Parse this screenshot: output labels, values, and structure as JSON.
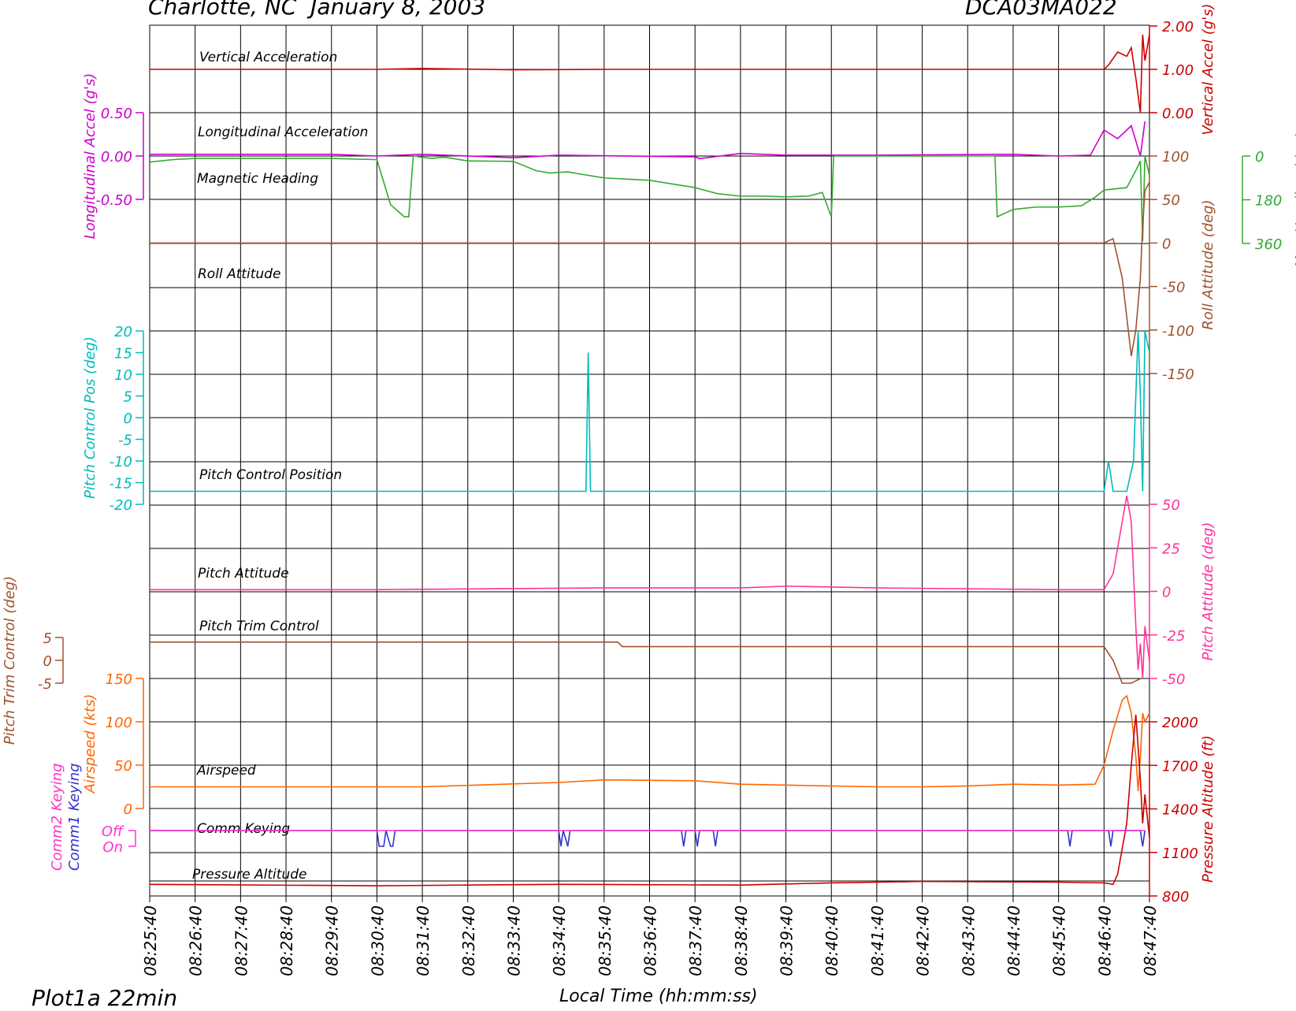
{
  "header": {
    "title": "Charlotte, NC  January 8, 2003",
    "case_id": "DCA03MA022",
    "plot_label": "Plot1a 22min"
  },
  "chart_data": {
    "type": "line",
    "x_axis": {
      "label": "Local Time (hh:mm:ss)",
      "ticks": [
        "08:25:40",
        "08:26:40",
        "08:27:40",
        "08:28:40",
        "08:29:40",
        "08:30:40",
        "08:31:40",
        "08:32:40",
        "08:33:40",
        "08:34:40",
        "08:35:40",
        "08:36:40",
        "08:37:40",
        "08:38:40",
        "08:39:40",
        "08:40:40",
        "08:41:40",
        "08:42:40",
        "08:43:40",
        "08:44:40",
        "08:45:40",
        "08:46:40",
        "08:47:40"
      ],
      "range": [
        "08:25:40",
        "08:47:40"
      ]
    },
    "grid": true,
    "axes": [
      {
        "id": "vert_accel",
        "side": "right",
        "label": "Vertical Accel (g's)",
        "color": "#cc0000",
        "ticks": [
          "2.00",
          "1.00",
          "0.00"
        ],
        "range": [
          0,
          2
        ]
      },
      {
        "id": "long_accel",
        "side": "left",
        "label": "Longitudinal Accel (g's)",
        "color": "#cc00cc",
        "ticks": [
          "0.50",
          "0.00",
          "-0.50"
        ],
        "range": [
          -0.5,
          0.5
        ]
      },
      {
        "id": "roll",
        "side": "right",
        "label": "Roll Attitude (deg)",
        "color": "#a0522d",
        "ticks": [
          "-150",
          "-100",
          "-50",
          "0",
          "50",
          "100"
        ],
        "range": [
          -150,
          100
        ]
      },
      {
        "id": "mag_heading",
        "side": "right",
        "label": "Mag Heading (deg)",
        "color": "#33aa33",
        "ticks": [
          "0",
          "180",
          "360"
        ],
        "range": [
          0,
          360
        ]
      },
      {
        "id": "pitch_ctrl",
        "side": "left",
        "label": "Pitch Control Pos (deg)",
        "color": "#00bbbb",
        "ticks": [
          "20",
          "15",
          "10",
          "5",
          "0",
          "-5",
          "-10",
          "-15",
          "-20"
        ],
        "range": [
          -20,
          20
        ]
      },
      {
        "id": "pitch_att",
        "side": "right",
        "label": "Pitch Attitude (deg)",
        "color": "#ff3399",
        "ticks": [
          "50",
          "25",
          "0",
          "-25",
          "-50"
        ],
        "range": [
          -50,
          50
        ]
      },
      {
        "id": "pitch_trim",
        "side": "left",
        "label": "Pitch Trim Control (deg)",
        "color": "#a0522d",
        "ticks": [
          "5",
          "0",
          "-5"
        ],
        "range": [
          -5,
          5
        ]
      },
      {
        "id": "airspeed",
        "side": "left",
        "label": "Airspeed (kts)",
        "color": "#ff6600",
        "ticks": [
          "150",
          "100",
          "50",
          "0"
        ],
        "range": [
          0,
          150
        ]
      },
      {
        "id": "press_alt",
        "side": "right",
        "label": "Pressure Altitude (ft)",
        "color": "#cc0000",
        "ticks": [
          "2000",
          "1700",
          "1400",
          "1100",
          "800"
        ],
        "range": [
          800,
          2000
        ]
      },
      {
        "id": "comm1",
        "side": "left",
        "label": "Comm1 Keying",
        "color": "#3333cc",
        "ticks": [
          "Off",
          "On"
        ]
      },
      {
        "id": "comm2",
        "side": "left",
        "label": "Comm2 Keying",
        "color": "#ff33cc",
        "ticks": [
          "Off",
          "On"
        ]
      }
    ],
    "series": [
      {
        "name": "Vertical Acceleration",
        "axis": "vert_accel",
        "color": "#cc0000",
        "points": [
          [
            0,
            1.0
          ],
          [
            5,
            1.0
          ],
          [
            6,
            1.02
          ],
          [
            8,
            0.99
          ],
          [
            10,
            1.0
          ],
          [
            14,
            1.0
          ],
          [
            18,
            1.0
          ],
          [
            21,
            1.0
          ],
          [
            21.1,
            1.1
          ],
          [
            21.3,
            1.4
          ],
          [
            21.5,
            1.3
          ],
          [
            21.6,
            1.5
          ],
          [
            21.7,
            0.8
          ],
          [
            21.8,
            0.0
          ],
          [
            21.85,
            1.8
          ],
          [
            21.9,
            1.2
          ],
          [
            22.0,
            1.8
          ]
        ]
      },
      {
        "name": "Longitudinal Acceleration",
        "axis": "long_accel",
        "color": "#cc00cc",
        "points": [
          [
            0,
            0.02
          ],
          [
            4,
            0.02
          ],
          [
            5,
            0.0
          ],
          [
            6,
            0.02
          ],
          [
            8,
            -0.02
          ],
          [
            9,
            0.01
          ],
          [
            12,
            -0.01
          ],
          [
            12.1,
            -0.03
          ],
          [
            13,
            0.03
          ],
          [
            14,
            0.01
          ],
          [
            16,
            0.01
          ],
          [
            19,
            0.02
          ],
          [
            20,
            0.0
          ],
          [
            20.7,
            0.01
          ],
          [
            21.0,
            0.3
          ],
          [
            21.3,
            0.2
          ],
          [
            21.6,
            0.35
          ],
          [
            21.8,
            0.0
          ],
          [
            21.9,
            0.4
          ]
        ]
      },
      {
        "name": "Magnetic Heading",
        "axis": "mag_heading",
        "color": "#33aa33",
        "points": [
          [
            0,
            25
          ],
          [
            0.5,
            15
          ],
          [
            1,
            10
          ],
          [
            2,
            10
          ],
          [
            4,
            10
          ],
          [
            5,
            15
          ],
          [
            5.3,
            200
          ],
          [
            5.6,
            250
          ],
          [
            5.7,
            250
          ],
          [
            5.8,
            0
          ],
          [
            6.2,
            10
          ],
          [
            6.5,
            5
          ],
          [
            7,
            20
          ],
          [
            8,
            22
          ],
          [
            8.5,
            60
          ],
          [
            8.8,
            70
          ],
          [
            9.2,
            65
          ],
          [
            9.5,
            75
          ],
          [
            10,
            90
          ],
          [
            10.5,
            95
          ],
          [
            11,
            100
          ],
          [
            11.5,
            115
          ],
          [
            12,
            130
          ],
          [
            12.5,
            155
          ],
          [
            13,
            165
          ],
          [
            13.5,
            165
          ],
          [
            14,
            168
          ],
          [
            14.5,
            165
          ],
          [
            14.8,
            150
          ],
          [
            15,
            250
          ],
          [
            15.05,
            0
          ],
          [
            17,
            0
          ],
          [
            18,
            0
          ],
          [
            18.6,
            0
          ],
          [
            18.65,
            250
          ],
          [
            19,
            220
          ],
          [
            19.5,
            210
          ],
          [
            20,
            210
          ],
          [
            20.5,
            205
          ],
          [
            20.8,
            170
          ],
          [
            21,
            140
          ],
          [
            21.5,
            130
          ],
          [
            21.7,
            60
          ],
          [
            21.8,
            20
          ],
          [
            21.85,
            350
          ],
          [
            21.9,
            0
          ],
          [
            22.0,
            80
          ]
        ]
      },
      {
        "name": "Roll Attitude",
        "axis": "roll",
        "color": "#a0522d",
        "points": [
          [
            0,
            0
          ],
          [
            10,
            0
          ],
          [
            20,
            0
          ],
          [
            21.0,
            0
          ],
          [
            21.2,
            5
          ],
          [
            21.4,
            -40
          ],
          [
            21.6,
            -130
          ],
          [
            21.7,
            -100
          ],
          [
            21.8,
            -40
          ],
          [
            21.85,
            20
          ],
          [
            21.9,
            60
          ],
          [
            22.0,
            70
          ]
        ]
      },
      {
        "name": "Pitch Control Position",
        "axis": "pitch_ctrl",
        "color": "#00bbbb",
        "points": [
          [
            0,
            -17
          ],
          [
            5,
            -17
          ],
          [
            9.6,
            -17
          ],
          [
            9.65,
            15
          ],
          [
            9.7,
            -17
          ],
          [
            10,
            -17
          ],
          [
            15,
            -17
          ],
          [
            20,
            -17
          ],
          [
            21.0,
            -17
          ],
          [
            21.1,
            -10
          ],
          [
            21.2,
            -17
          ],
          [
            21.5,
            -17
          ],
          [
            21.65,
            -10
          ],
          [
            21.75,
            20
          ],
          [
            21.8,
            5
          ],
          [
            21.85,
            -17
          ],
          [
            21.9,
            20
          ],
          [
            22.0,
            15
          ]
        ]
      },
      {
        "name": "Pitch Attitude",
        "axis": "pitch_att",
        "color": "#ff3399",
        "points": [
          [
            0,
            1
          ],
          [
            5,
            1
          ],
          [
            10,
            2
          ],
          [
            13,
            2
          ],
          [
            14,
            3
          ],
          [
            16,
            2
          ],
          [
            20,
            1
          ],
          [
            21.0,
            1
          ],
          [
            21.2,
            10
          ],
          [
            21.4,
            40
          ],
          [
            21.5,
            55
          ],
          [
            21.6,
            40
          ],
          [
            21.7,
            -20
          ],
          [
            21.75,
            -45
          ],
          [
            21.8,
            -30
          ],
          [
            21.85,
            -50
          ],
          [
            21.9,
            -20
          ],
          [
            22.0,
            -40
          ]
        ]
      },
      {
        "name": "Pitch Trim Control",
        "axis": "pitch_trim",
        "color": "#a0522d",
        "points": [
          [
            0,
            4
          ],
          [
            10.3,
            4
          ],
          [
            10.4,
            3
          ],
          [
            15,
            3
          ],
          [
            20,
            3
          ],
          [
            21.0,
            3
          ],
          [
            21.2,
            0
          ],
          [
            21.4,
            -5
          ],
          [
            21.6,
            -5
          ],
          [
            21.8,
            -4
          ]
        ]
      },
      {
        "name": "Airspeed",
        "axis": "airspeed",
        "color": "#ff6600",
        "points": [
          [
            0,
            25
          ],
          [
            3,
            25
          ],
          [
            6,
            25
          ],
          [
            9,
            30
          ],
          [
            10,
            33
          ],
          [
            12,
            32
          ],
          [
            13,
            28
          ],
          [
            16,
            25
          ],
          [
            17,
            25
          ],
          [
            18,
            26
          ],
          [
            19,
            28
          ],
          [
            20,
            27
          ],
          [
            20.8,
            28
          ],
          [
            21.0,
            50
          ],
          [
            21.2,
            90
          ],
          [
            21.4,
            125
          ],
          [
            21.5,
            130
          ],
          [
            21.6,
            110
          ],
          [
            21.7,
            60
          ],
          [
            21.75,
            20
          ],
          [
            21.8,
            60
          ],
          [
            21.85,
            110
          ],
          [
            21.9,
            100
          ],
          [
            22.0,
            110
          ]
        ]
      },
      {
        "name": "Comm Keying",
        "axis": "comm1",
        "color": "#3333cc",
        "points": [
          [
            0,
            0
          ],
          [
            5,
            0
          ],
          [
            5.05,
            1
          ],
          [
            5.15,
            1
          ],
          [
            5.2,
            0
          ],
          [
            5.3,
            1
          ],
          [
            5.35,
            1
          ],
          [
            5.4,
            0
          ],
          [
            9,
            0
          ],
          [
            9.05,
            1
          ],
          [
            9.1,
            0
          ],
          [
            9.2,
            1
          ],
          [
            9.25,
            0
          ],
          [
            11.7,
            0
          ],
          [
            11.75,
            1
          ],
          [
            11.8,
            0
          ],
          [
            12,
            0
          ],
          [
            12.05,
            1
          ],
          [
            12.1,
            0
          ],
          [
            12.4,
            0
          ],
          [
            12.45,
            1
          ],
          [
            12.5,
            0
          ],
          [
            20.2,
            0
          ],
          [
            20.25,
            1
          ],
          [
            20.3,
            0
          ],
          [
            21.1,
            0
          ],
          [
            21.15,
            1
          ],
          [
            21.2,
            0
          ],
          [
            21.8,
            0
          ],
          [
            21.85,
            1
          ],
          [
            21.9,
            0
          ]
        ]
      },
      {
        "name": "Pressure Altitude",
        "axis": "press_alt",
        "color": "#cc0000",
        "points": [
          [
            0,
            880
          ],
          [
            5,
            870
          ],
          [
            9,
            880
          ],
          [
            13,
            875
          ],
          [
            15,
            890
          ],
          [
            17,
            900
          ],
          [
            20,
            895
          ],
          [
            21.0,
            890
          ],
          [
            21.2,
            880
          ],
          [
            21.3,
            950
          ],
          [
            21.5,
            1300
          ],
          [
            21.6,
            1700
          ],
          [
            21.7,
            2050
          ],
          [
            21.8,
            1600
          ],
          [
            21.85,
            1300
          ],
          [
            21.9,
            1500
          ],
          [
            22.0,
            1200
          ]
        ]
      }
    ]
  },
  "series_labels": {
    "vert_accel": "Vertical Acceleration",
    "long_accel": "Longitudinal Acceleration",
    "mag_heading": "Magnetic Heading",
    "roll": "Roll Attitude",
    "pitch_ctrl": "Pitch Control Position",
    "pitch_att": "Pitch Attitude",
    "pitch_trim": "Pitch Trim Control",
    "airspeed": "Airspeed",
    "comm": "Comm Keying",
    "press_alt": "Pressure Altitude"
  }
}
